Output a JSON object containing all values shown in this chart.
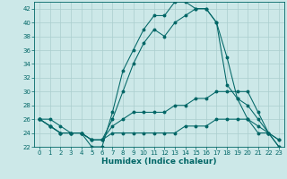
{
  "x": [
    0,
    1,
    2,
    3,
    4,
    5,
    6,
    7,
    8,
    9,
    10,
    11,
    12,
    13,
    14,
    15,
    16,
    17,
    18,
    19,
    20,
    21,
    22,
    23
  ],
  "line1": [
    26,
    26,
    25,
    24,
    24,
    22,
    22,
    27,
    33,
    36,
    39,
    41,
    41,
    43,
    43,
    42,
    42,
    40,
    31,
    29,
    26,
    24,
    24,
    22
  ],
  "line2": [
    26,
    25,
    24,
    24,
    24,
    23,
    23,
    26,
    30,
    34,
    37,
    39,
    38,
    40,
    41,
    42,
    42,
    40,
    35,
    29,
    28,
    26,
    24,
    22
  ],
  "line3": [
    26,
    25,
    24,
    24,
    24,
    23,
    23,
    25,
    26,
    27,
    27,
    27,
    27,
    28,
    28,
    29,
    29,
    30,
    30,
    30,
    30,
    27,
    24,
    23
  ],
  "line4": [
    26,
    25,
    24,
    24,
    24,
    23,
    23,
    24,
    24,
    24,
    24,
    24,
    24,
    24,
    25,
    25,
    25,
    26,
    26,
    26,
    26,
    25,
    24,
    23
  ],
  "bg_color": "#cce8e8",
  "line_color": "#006666",
  "grid_color": "#aacece",
  "xlabel": "Humidex (Indice chaleur)",
  "ylim": [
    22,
    43
  ],
  "xlim": [
    -0.5,
    23.5
  ],
  "yticks": [
    22,
    24,
    26,
    28,
    30,
    32,
    34,
    36,
    38,
    40,
    42
  ],
  "xticks": [
    0,
    1,
    2,
    3,
    4,
    5,
    6,
    7,
    8,
    9,
    10,
    11,
    12,
    13,
    14,
    15,
    16,
    17,
    18,
    19,
    20,
    21,
    22,
    23
  ],
  "tick_fontsize": 5.0,
  "xlabel_fontsize": 6.5,
  "marker_size": 1.8,
  "linewidth": 0.75
}
